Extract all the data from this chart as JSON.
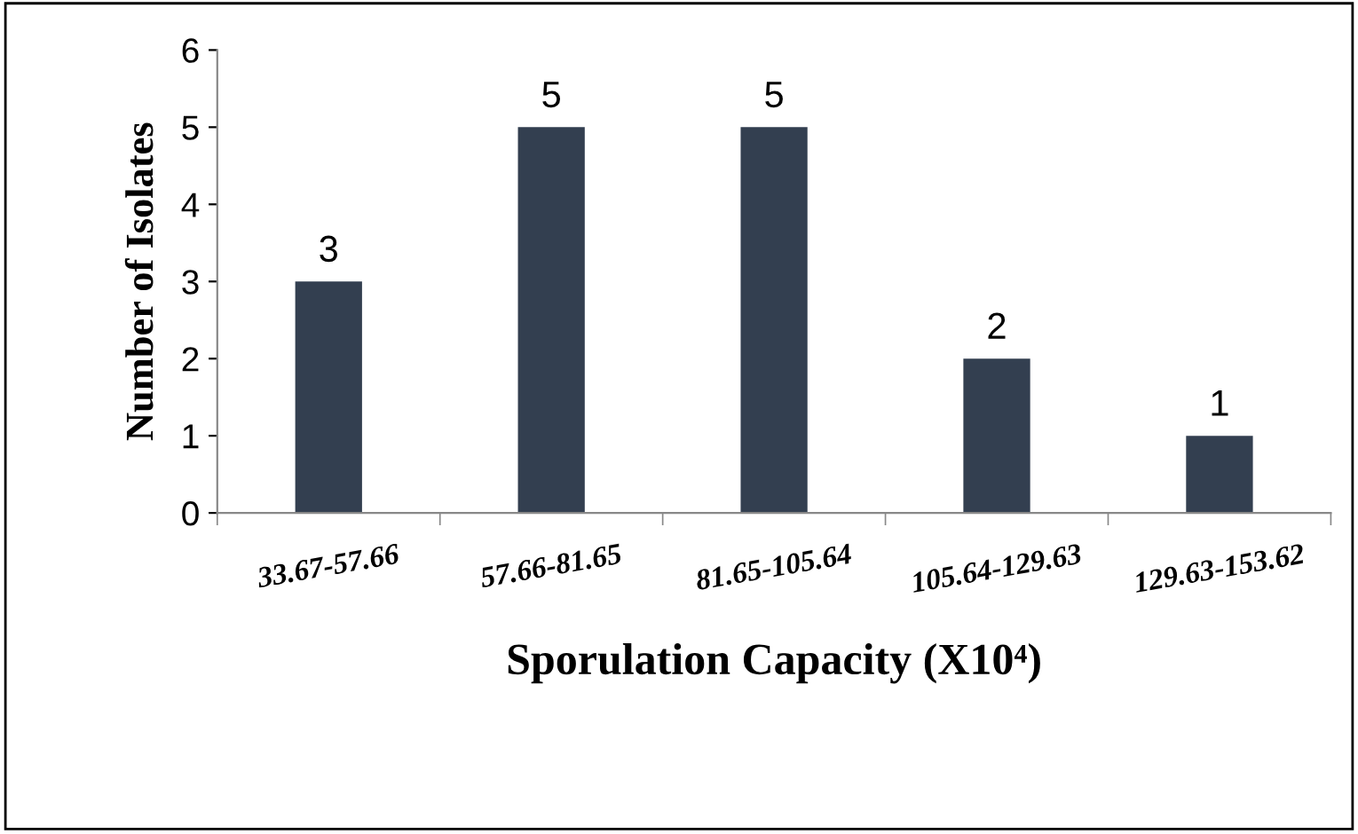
{
  "chart_data": {
    "type": "bar",
    "xlabel": "Sporulation Capacity (X10⁴)",
    "ylabel": "Number of Isolates",
    "categories": [
      "33.67-57.66",
      "57.66-81.65",
      "81.65-105.64",
      "105.64-129.63",
      "129.63-153.62"
    ],
    "values": [
      3,
      5,
      5,
      2,
      1
    ],
    "color": "#333f50",
    "ylim": [
      0,
      6
    ],
    "yticks": [
      0,
      1,
      2,
      3,
      4,
      5,
      6
    ],
    "grid": false,
    "data_labels": true
  }
}
